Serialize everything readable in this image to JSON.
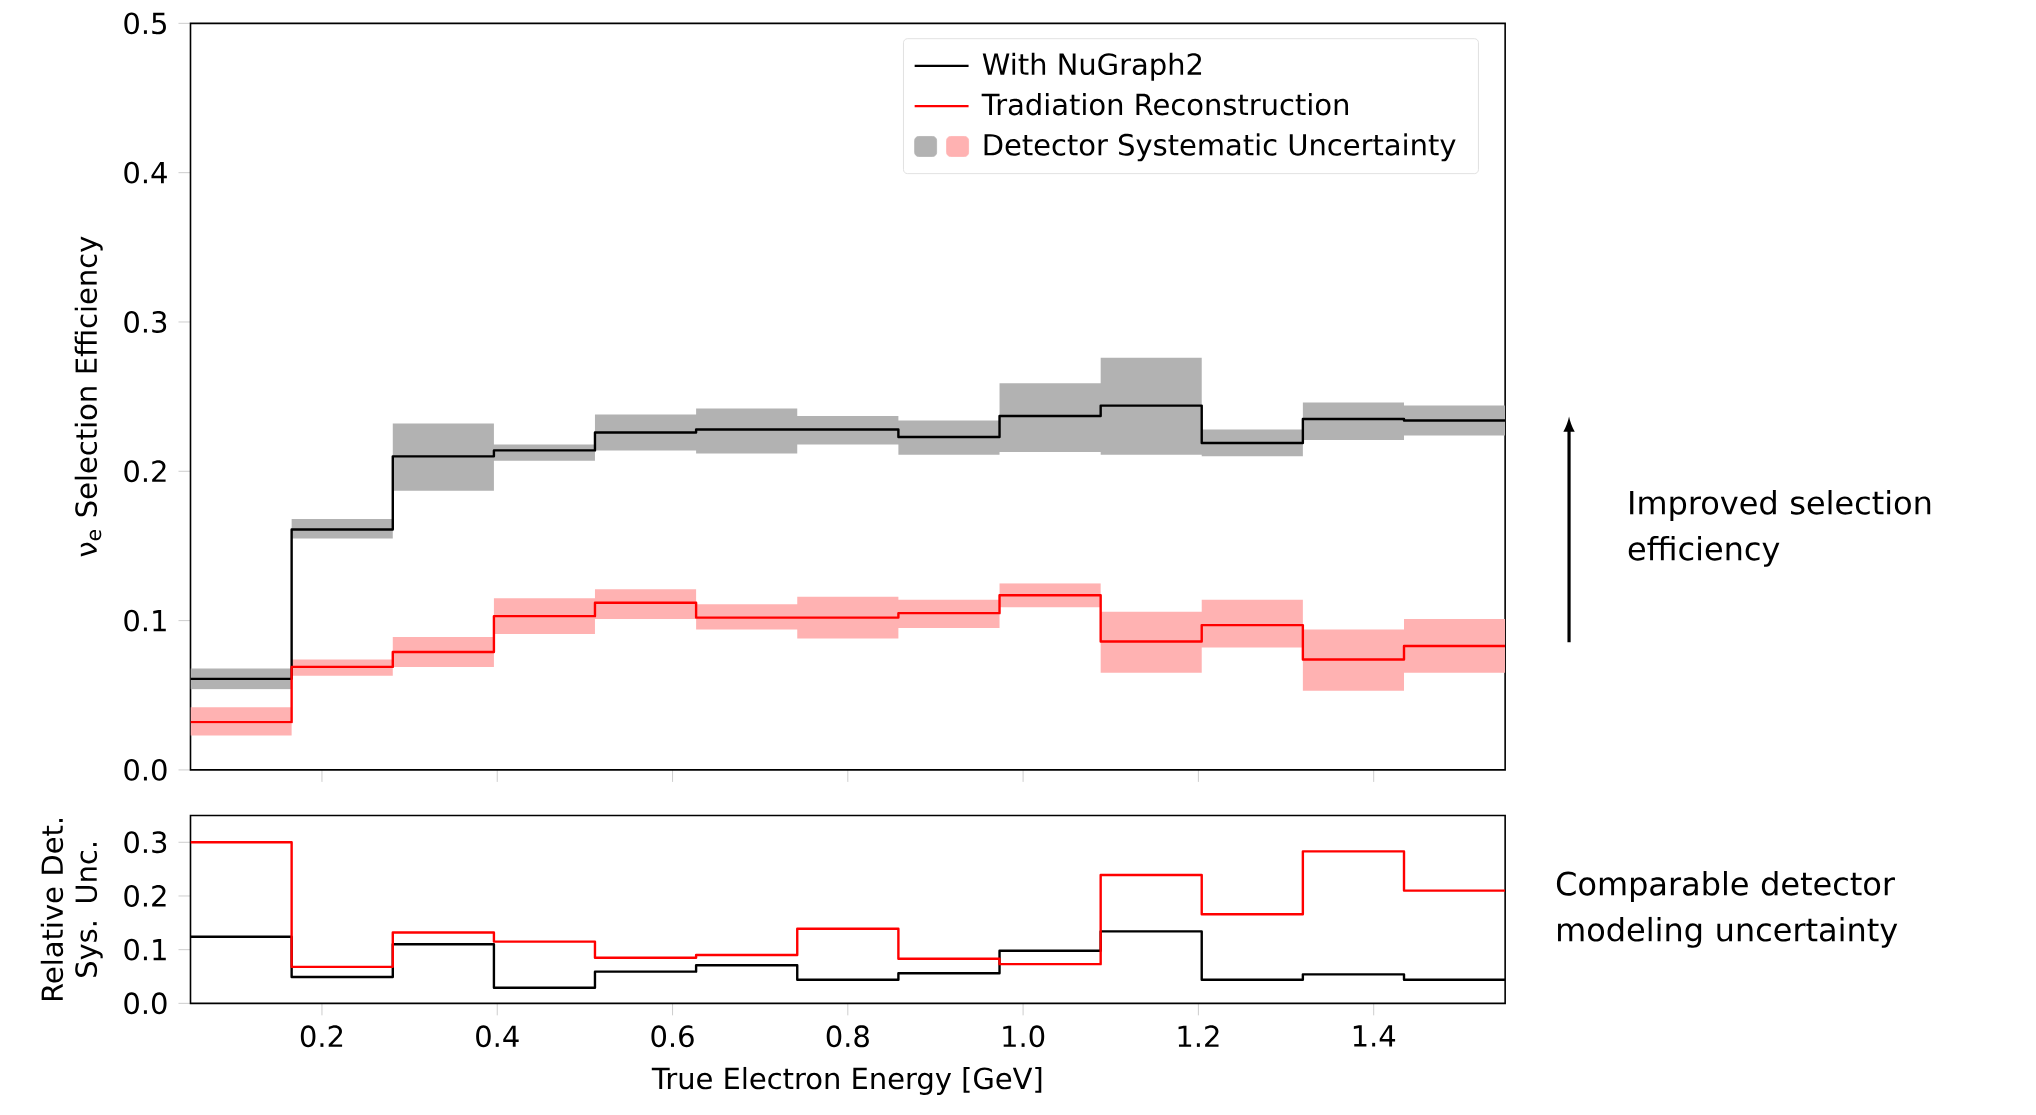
{
  "chart_data": [
    {
      "type": "step",
      "x": [
        0.05,
        0.1654,
        0.2808,
        0.3962,
        0.5115,
        0.6269,
        0.7423,
        0.8577,
        0.9731,
        1.0885,
        1.2038,
        1.3192,
        1.4346,
        1.55
      ],
      "ylabel": "ν$_{e}$ Selection Efficiency",
      "series": [
        {
          "name": "With NuGraph2",
          "color": "#000000",
          "values": [
            0.061,
            0.161,
            0.21,
            0.214,
            0.226,
            0.228,
            0.228,
            0.223,
            0.237,
            0.244,
            0.219,
            0.235,
            0.234,
            0.234
          ],
          "lower": [
            0.054,
            0.155,
            0.187,
            0.207,
            0.214,
            0.212,
            0.218,
            0.211,
            0.213,
            0.211,
            0.21,
            0.221,
            0.224,
            0.224
          ],
          "upper": [
            0.068,
            0.168,
            0.232,
            0.218,
            0.238,
            0.242,
            0.237,
            0.234,
            0.259,
            0.276,
            0.228,
            0.246,
            0.244,
            0.244
          ]
        },
        {
          "name": "Tradiation Reconstruction",
          "color": "#ff0000",
          "values": [
            0.032,
            0.069,
            0.079,
            0.103,
            0.112,
            0.102,
            0.102,
            0.105,
            0.117,
            0.086,
            0.097,
            0.074,
            0.083,
            0.083
          ],
          "lower": [
            0.023,
            0.063,
            0.069,
            0.091,
            0.101,
            0.094,
            0.088,
            0.095,
            0.109,
            0.065,
            0.082,
            0.053,
            0.065,
            0.065
          ],
          "upper": [
            0.042,
            0.074,
            0.089,
            0.115,
            0.121,
            0.111,
            0.116,
            0.114,
            0.125,
            0.106,
            0.114,
            0.094,
            0.101,
            0.101
          ]
        }
      ],
      "xlim": [
        0.05,
        1.55
      ],
      "xticks": [
        {
          "value": 0.2,
          "label": null
        },
        {
          "value": 0.4,
          "label": null
        },
        {
          "value": 0.6,
          "label": null
        },
        {
          "value": 0.8,
          "label": null
        },
        {
          "value": 1.0,
          "label": null
        },
        {
          "value": 1.2,
          "label": null
        },
        {
          "value": 1.4,
          "label": null
        }
      ],
      "ylim": [
        0,
        0.5
      ],
      "yticks": [
        {
          "value": 0,
          "label": "0.0"
        },
        {
          "value": 0.1,
          "label": "0.1"
        },
        {
          "value": 0.2,
          "label": "0.2"
        },
        {
          "value": 0.3,
          "label": "0.3"
        },
        {
          "value": 0.4,
          "label": "0.4"
        },
        {
          "value": 0.5,
          "label": "0.5"
        }
      ],
      "tick_labels": "y",
      "legend": "top right",
      "annotations": [
        "Detector Systematic Uncertainty",
        "Improved selection efficiency"
      ]
    },
    {
      "type": "step",
      "x": [
        0.05,
        0.1654,
        0.2808,
        0.3962,
        0.5115,
        0.6269,
        0.7423,
        0.8577,
        0.9731,
        1.0885,
        1.2038,
        1.3192,
        1.4346,
        1.55
      ],
      "xlabel": "True Electron Energy [GeV]",
      "ylabel": "Relative Det. Sys. Unc.",
      "series": [
        {
          "color": "#000000",
          "values": [
            0.124,
            0.049,
            0.11,
            0.029,
            0.059,
            0.071,
            0.044,
            0.056,
            0.098,
            0.134,
            0.044,
            0.054,
            0.044,
            0.044
          ]
        },
        {
          "color": "#ff0000",
          "values": [
            0.3,
            0.068,
            0.132,
            0.115,
            0.085,
            0.09,
            0.139,
            0.083,
            0.073,
            0.239,
            0.166,
            0.283,
            0.21,
            0.21
          ]
        }
      ],
      "xlim": [
        0.05,
        1.55
      ],
      "xticks": [
        {
          "value": 0.2,
          "label": "0.2"
        },
        {
          "value": 0.4,
          "label": "0.4"
        },
        {
          "value": 0.6,
          "label": "0.6"
        },
        {
          "value": 0.8,
          "label": "0.8"
        },
        {
          "value": 1.0,
          "label": "1.0"
        },
        {
          "value": 1.2,
          "label": "1.2"
        },
        {
          "value": 1.4,
          "label": "1.4"
        }
      ],
      "ylim": [
        0,
        0.35
      ],
      "yticks": [
        {
          "value": 0,
          "label": "0.0"
        },
        {
          "value": 0.1,
          "label": "0.1"
        },
        {
          "value": 0.2,
          "label": "0.2"
        },
        {
          "value": 0.3,
          "label": "0.3"
        }
      ],
      "annotations": [
        "Comparable detector modeling uncertainty"
      ]
    }
  ]
}
